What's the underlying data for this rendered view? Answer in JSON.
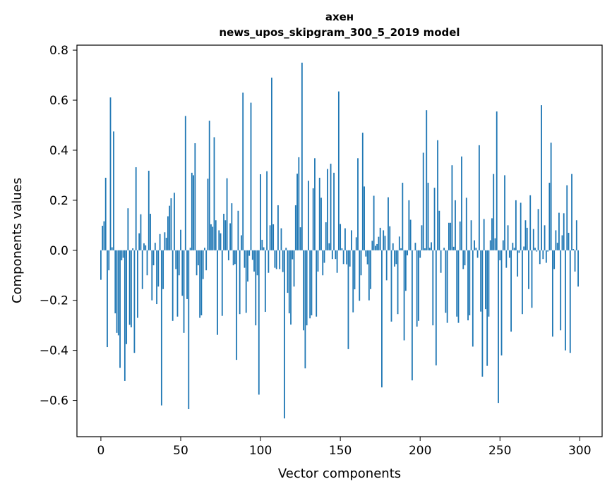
{
  "chart_data": {
    "type": "bar",
    "title_lines": [
      "ахен",
      "news_upos_skipgram_300_5_2019 model"
    ],
    "xlabel": "Vector components",
    "ylabel": "Components values",
    "xlim": [
      -15,
      314
    ],
    "ylim": [
      -0.745,
      0.82
    ],
    "x_ticks": [
      0,
      50,
      100,
      150,
      200,
      250,
      300
    ],
    "x_tick_labels": [
      "0",
      "50",
      "100",
      "150",
      "200",
      "250",
      "300"
    ],
    "y_ticks": [
      -0.6,
      -0.4,
      -0.2,
      0.0,
      0.2,
      0.4,
      0.6,
      0.8
    ],
    "y_tick_labels": [
      "−0.6",
      "−0.4",
      "−0.2",
      "0.0",
      "0.2",
      "0.4",
      "0.6",
      "0.8"
    ],
    "bar_color": "#1f77b4",
    "bar_width": 0.8,
    "values": [
      -0.118,
      0.098,
      0.116,
      0.29,
      -0.387,
      -0.08,
      0.611,
      0.012,
      0.475,
      -0.252,
      -0.33,
      -0.34,
      -0.47,
      -0.04,
      -0.03,
      -0.522,
      -0.375,
      0.168,
      -0.298,
      -0.308,
      0.008,
      -0.41,
      0.332,
      -0.27,
      0.068,
      0.144,
      -0.155,
      0.028,
      0.02,
      -0.1,
      0.318,
      0.146,
      -0.2,
      -0.06,
      0.03,
      -0.215,
      -0.145,
      0.065,
      -0.62,
      -0.155,
      0.072,
      0.05,
      0.136,
      0.178,
      0.208,
      -0.282,
      0.23,
      -0.075,
      -0.265,
      -0.1,
      0.082,
      -0.182,
      -0.33,
      0.537,
      -0.195,
      -0.635,
      0.01,
      0.31,
      0.3,
      0.428,
      -0.1,
      -0.06,
      -0.27,
      -0.26,
      -0.115,
      0.01,
      -0.08,
      0.286,
      0.518,
      0.104,
      0.094,
      0.452,
      0.12,
      -0.338,
      0.08,
      0.068,
      -0.262,
      0.146,
      0.12,
      0.288,
      -0.04,
      0.108,
      0.188,
      -0.06,
      -0.055,
      -0.438,
      0.158,
      -0.255,
      0.06,
      0.63,
      -0.07,
      -0.25,
      -0.125,
      -0.022,
      0.59,
      -0.038,
      -0.085,
      -0.3,
      -0.1,
      -0.577,
      0.304,
      0.042,
      0.012,
      -0.246,
      0.316,
      -0.09,
      0.1,
      0.69,
      0.104,
      -0.07,
      -0.075,
      0.18,
      -0.075,
      0.088,
      -0.087,
      -0.672,
      0.01,
      -0.17,
      -0.252,
      -0.297,
      -0.036,
      -0.145,
      0.18,
      0.306,
      0.372,
      0.092,
      0.75,
      -0.32,
      -0.472,
      -0.3,
      0.278,
      -0.272,
      -0.26,
      0.248,
      0.368,
      -0.265,
      -0.085,
      0.29,
      0.21,
      -0.1,
      -0.05,
      0.112,
      0.325,
      0.028,
      0.346,
      -0.035,
      0.31,
      -0.035,
      -0.09,
      0.635,
      0.105,
      0.008,
      -0.055,
      0.088,
      -0.056,
      -0.395,
      -0.065,
      0.08,
      -0.248,
      -0.156,
      0.052,
      0.368,
      -0.202,
      -0.1,
      0.47,
      0.255,
      -0.025,
      -0.056,
      -0.2,
      -0.155,
      0.038,
      0.218,
      0.018,
      0.025,
      0.054,
      0.09,
      -0.548,
      0.08,
      0.058,
      -0.12,
      0.212,
      0.096,
      -0.285,
      0.028,
      -0.065,
      -0.055,
      -0.255,
      0.055,
      0.008,
      0.27,
      -0.36,
      -0.162,
      -0.02,
      0.2,
      0.122,
      -0.52,
      0.0,
      0.03,
      -0.305,
      -0.282,
      -0.03,
      0.1,
      0.39,
      0.008,
      0.56,
      0.27,
      0.01,
      0.032,
      -0.3,
      0.25,
      -0.46,
      0.44,
      0.158,
      -0.09,
      0.0,
      0.01,
      -0.25,
      -0.29,
      0.11,
      0.11,
      0.34,
      0.014,
      0.2,
      -0.265,
      -0.29,
      0.115,
      0.375,
      -0.075,
      -0.06,
      0.21,
      -0.28,
      -0.26,
      0.12,
      -0.385,
      0.04,
      0.01,
      -0.03,
      0.42,
      -0.245,
      -0.505,
      0.125,
      -0.235,
      -0.462,
      -0.265,
      0.04,
      0.128,
      0.305,
      0.048,
      0.555,
      -0.61,
      -0.04,
      -0.42,
      0.04,
      0.3,
      -0.07,
      0.1,
      -0.03,
      -0.325,
      0.03,
      0.01,
      0.2,
      -0.105,
      -0.01,
      0.19,
      -0.255,
      0.015,
      0.12,
      0.09,
      -0.155,
      0.22,
      -0.23,
      0.085,
      0.01,
      -0.005,
      0.165,
      -0.055,
      0.58,
      -0.035,
      0.1,
      -0.05,
      -0.005,
      0.27,
      0.43,
      -0.345,
      -0.075,
      0.08,
      0.03,
      0.15,
      -0.32,
      0.06,
      0.148,
      -0.4,
      0.26,
      0.07,
      -0.41,
      0.305,
      0.005,
      -0.085,
      0.12,
      -0.145
    ]
  }
}
